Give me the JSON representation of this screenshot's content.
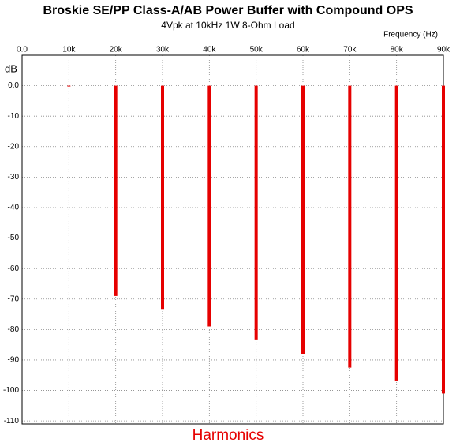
{
  "chart_data": {
    "type": "bar",
    "title": "Broskie SE/PP Class-A/AB Power Buffer with Compound OPS",
    "subtitle": "4Vpk at 10kHz 1W 8-Ohm Load",
    "x_label": "Frequency   (Hz)",
    "y_label": "dB",
    "annotation": "Harmonics",
    "x": [
      10000,
      20000,
      30000,
      40000,
      50000,
      60000,
      70000,
      80000,
      90000
    ],
    "values": [
      0,
      -69,
      -73.5,
      -79,
      -83.5,
      -88,
      -92.5,
      -97,
      -101
    ],
    "color": "#e60000",
    "xlim": [
      0,
      90000
    ],
    "xticks": [
      {
        "value": 0,
        "label": "0.0"
      },
      {
        "value": 10000,
        "label": "10k"
      },
      {
        "value": 20000,
        "label": "20k"
      },
      {
        "value": 30000,
        "label": "30k"
      },
      {
        "value": 40000,
        "label": "40k"
      },
      {
        "value": 50000,
        "label": "50k"
      },
      {
        "value": 60000,
        "label": "60k"
      },
      {
        "value": 70000,
        "label": "70k"
      },
      {
        "value": 80000,
        "label": "80k"
      },
      {
        "value": 90000,
        "label": "90k"
      }
    ],
    "ylim": [
      -111,
      10
    ],
    "yticks": [
      {
        "value": 0,
        "label": "0.0"
      },
      -10,
      -20,
      -30,
      -40,
      -50,
      -60,
      -70,
      -80,
      -90,
      -100,
      -110
    ],
    "grid": true
  }
}
